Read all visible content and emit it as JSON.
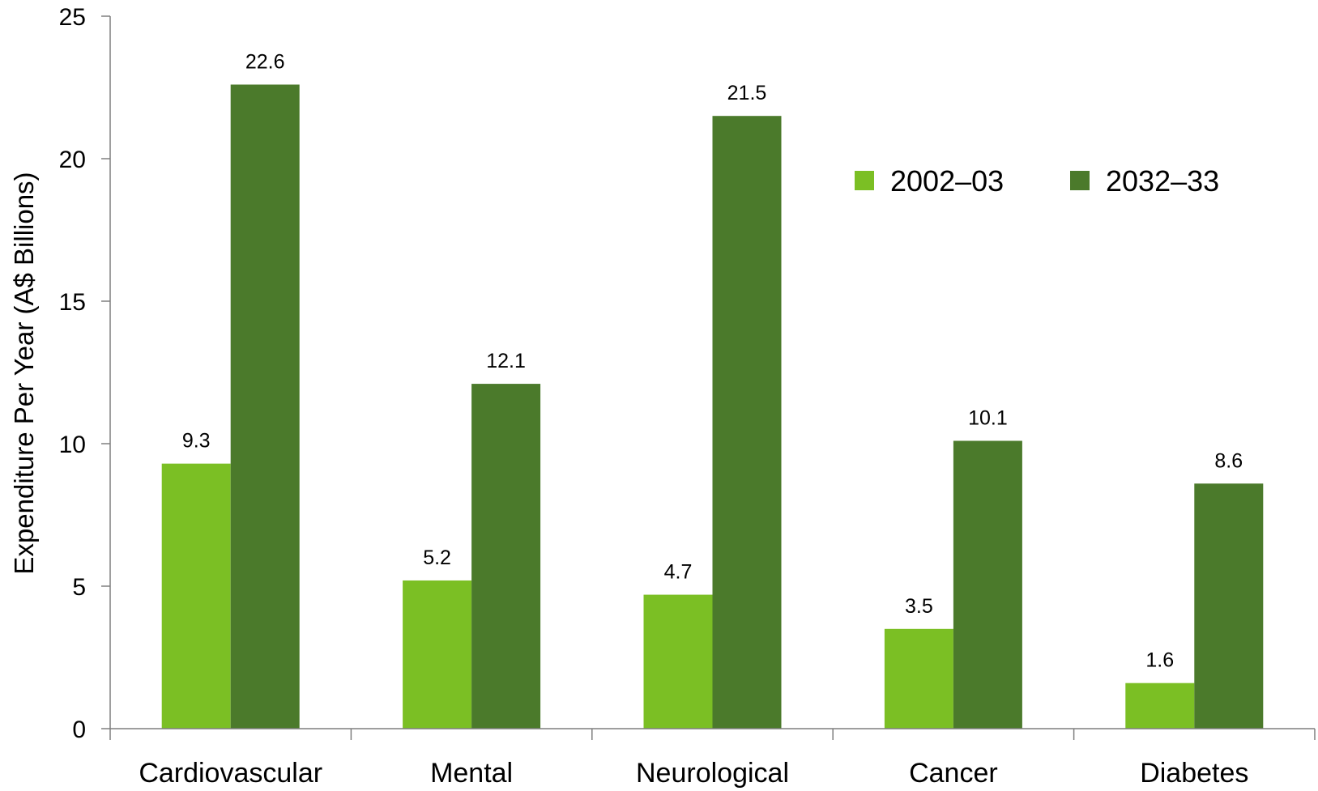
{
  "chart_data": {
    "type": "bar",
    "title": "",
    "xlabel": "",
    "ylabel": "Expenditure Per Year (A$ Billions)",
    "categories": [
      "Cardiovascular",
      "Mental",
      "Neurological",
      "Cancer",
      "Diabetes"
    ],
    "series": [
      {
        "name": "2002–03",
        "values": [
          9.3,
          5.2,
          4.7,
          3.5,
          1.6
        ],
        "color": "#7bbf24"
      },
      {
        "name": "2032–33",
        "values": [
          22.6,
          12.1,
          21.5,
          10.1,
          8.6
        ],
        "color": "#4b7a2b"
      }
    ],
    "data_labels": [
      [
        "9.3",
        "5.2",
        "4.7",
        "3.5",
        "1.6"
      ],
      [
        "22.6",
        "12.1",
        "21.5",
        "10.1",
        "8.6"
      ]
    ],
    "ylim": [
      0,
      25
    ],
    "yticks": [
      0,
      5,
      10,
      15,
      20,
      25
    ],
    "grid": false,
    "legend_position": "top-right"
  }
}
